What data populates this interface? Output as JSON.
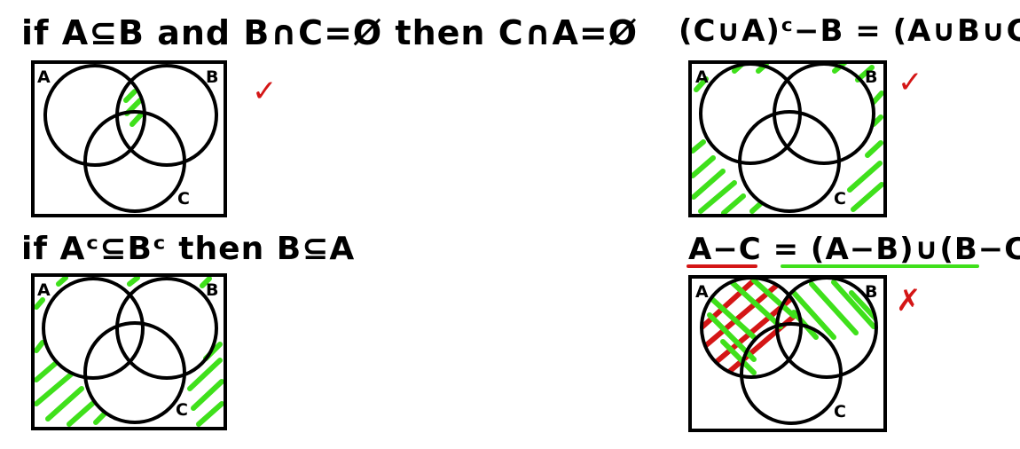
{
  "problems": [
    {
      "statement": "if A⊆B and B∩C=Ø then C∩A=Ø",
      "mark": "✓",
      "labels": {
        "a": "A",
        "b": "B",
        "c": "C"
      }
    },
    {
      "statement": "(C∪A)ᶜ−B = (A∪B∪C)ᶜ",
      "mark": "✓",
      "labels": {
        "a": "A",
        "b": "B",
        "c": "C"
      }
    },
    {
      "statement": "if Aᶜ⊆Bᶜ then B⊆A",
      "mark": "",
      "labels": {
        "a": "A",
        "b": "B",
        "c": "C"
      }
    },
    {
      "statement": "A−C = (A−B)∪(B−C)",
      "mark": "✗",
      "labels": {
        "a": "A",
        "b": "B",
        "c": "C"
      }
    }
  ],
  "colors": {
    "ink": "#000000",
    "shade_green": "#3fe01b",
    "shade_red": "#d41616",
    "mark_red": "#d41616"
  }
}
